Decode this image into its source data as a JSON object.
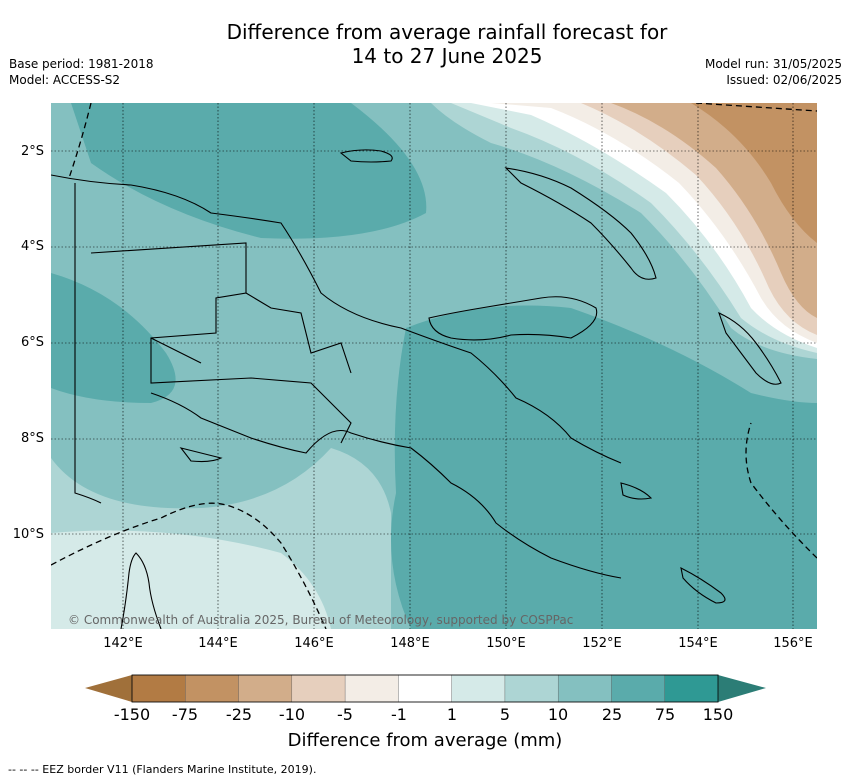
{
  "title_line1": "Difference from average rainfall forecast for",
  "title_line2": "14 to 27 June 2025",
  "base_period": "Base period: 1981-2018",
  "model": "Model: ACCESS-S2",
  "model_run": "Model run: 31/05/2025",
  "issued": "Issued: 02/06/2025",
  "lat_labels": [
    "2°S",
    "4°S",
    "6°S",
    "8°S",
    "10°S"
  ],
  "lon_labels": [
    "142°E",
    "144°E",
    "146°E",
    "148°E",
    "150°E",
    "152°E",
    "154°E",
    "156°E"
  ],
  "colorbar": {
    "ticks": [
      "-150",
      "-75",
      "-25",
      "-10",
      "-5",
      "-1",
      "1",
      "5",
      "10",
      "25",
      "75",
      "150"
    ],
    "colors": [
      "#a0703a",
      "#b27b44",
      "#c29263",
      "#d2ad8a",
      "#e6cfbd",
      "#f3ede6",
      "#ffffff",
      "#d5eae8",
      "#add5d4",
      "#84c0c0",
      "#5aabab",
      "#2f9994",
      "#2c7d76"
    ],
    "label": "Difference from average (mm)"
  },
  "copyright": "© Commonwealth of Australia 2025, Bureau of Meteorology, supported by COSPPac",
  "eez_note": "-- -- -- EEZ border V11 (Flanders Marine Institute, 2019)."
}
